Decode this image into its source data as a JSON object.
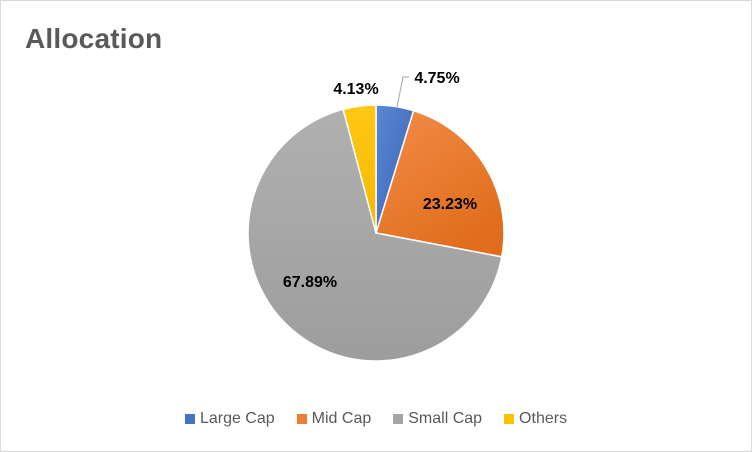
{
  "chart_data": {
    "type": "pie",
    "title": "Allocation",
    "categories": [
      "Large Cap",
      "Mid Cap",
      "Small Cap",
      "Others"
    ],
    "values": [
      4.75,
      23.23,
      67.89,
      4.13
    ],
    "data_labels": [
      "4.75%",
      "23.23%",
      "67.89%",
      "4.13%"
    ],
    "colors": [
      "#4472C4",
      "#ED7D31",
      "#A5A5A5",
      "#FFC000"
    ],
    "start_angle_deg": 0,
    "direction": "clockwise",
    "legend": "bottom",
    "grid": false
  }
}
